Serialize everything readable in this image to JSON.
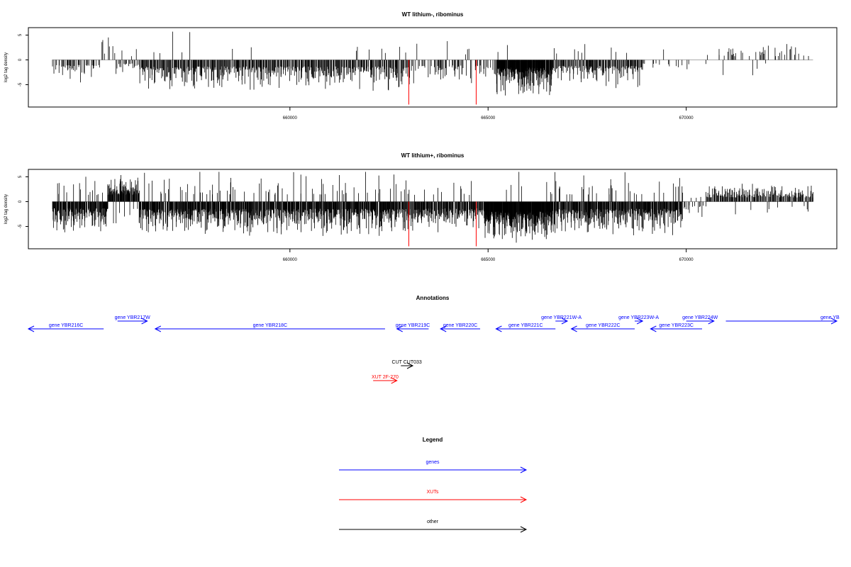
{
  "chart_data": [
    {
      "type": "bar",
      "title": "WT lithium-, ribominus",
      "ylabel": "log2 tag density",
      "xlim": [
        653400,
        673800
      ],
      "ylim": [
        -9.5,
        6.5
      ],
      "yticks": [
        -5,
        0,
        5
      ],
      "yticklabels": [
        "-5",
        "0",
        "5"
      ],
      "xticks": [
        660000,
        665000,
        670000
      ],
      "xticklabels": [
        "660000",
        "665000",
        "670000"
      ],
      "colors": {
        "bars": "#000000",
        "highlight": "#ff0000",
        "baseline": "#aaaaaa"
      },
      "highlights": [
        {
          "x": 663000,
          "y": -9.0
        },
        {
          "x": 664700,
          "y": -9.0
        }
      ],
      "profile": [
        {
          "start": 654000,
          "end": 655250,
          "density": 0.7,
          "pos_frac": 0.05,
          "amp": 4.0
        },
        {
          "start": 655250,
          "end": 655600,
          "density": 0.3,
          "pos_frac": 0.8,
          "amp": 4.5
        },
        {
          "start": 655600,
          "end": 656200,
          "density": 0.5,
          "pos_frac": 0.2,
          "amp": 3.0
        },
        {
          "start": 656200,
          "end": 663000,
          "density": 1.2,
          "pos_frac": 0.03,
          "amp": 5.5
        },
        {
          "start": 663000,
          "end": 665200,
          "density": 0.6,
          "pos_frac": 0.05,
          "amp": 4.5
        },
        {
          "start": 665200,
          "end": 666600,
          "density": 3.0,
          "pos_frac": 0.02,
          "amp": 6.5
        },
        {
          "start": 666600,
          "end": 668900,
          "density": 1.2,
          "pos_frac": 0.05,
          "amp": 5.0
        },
        {
          "start": 668900,
          "end": 670400,
          "density": 0.25,
          "pos_frac": 0.1,
          "amp": 2.5
        },
        {
          "start": 670400,
          "end": 673200,
          "density": 0.3,
          "pos_frac": 0.9,
          "amp": 3.0
        }
      ]
    },
    {
      "type": "bar",
      "title": "WT lithium+, ribominus",
      "ylabel": "log2 tag density",
      "xlim": [
        653400,
        673800
      ],
      "ylim": [
        -9.5,
        6.5
      ],
      "yticks": [
        -5,
        0,
        5
      ],
      "yticklabels": [
        "-5",
        "0",
        "5"
      ],
      "xticks": [
        660000,
        665000,
        670000
      ],
      "xticklabels": [
        "660000",
        "665000",
        "670000"
      ],
      "colors": {
        "bars": "#000000",
        "highlight": "#ff0000",
        "baseline": "#aaaaaa"
      },
      "highlights": [
        {
          "x": 663000,
          "y": -9.0
        },
        {
          "x": 664700,
          "y": -9.0
        }
      ],
      "profile": [
        {
          "start": 654000,
          "end": 655400,
          "density": 2.2,
          "pos_frac": 0.08,
          "amp": 5.5
        },
        {
          "start": 655400,
          "end": 656200,
          "density": 2.5,
          "pos_frac": 0.9,
          "amp": 5.5
        },
        {
          "start": 656200,
          "end": 663000,
          "density": 2.2,
          "pos_frac": 0.08,
          "amp": 6.0
        },
        {
          "start": 663000,
          "end": 664900,
          "density": 1.8,
          "pos_frac": 0.08,
          "amp": 5.5
        },
        {
          "start": 664900,
          "end": 666600,
          "density": 4.0,
          "pos_frac": 0.02,
          "amp": 7.5
        },
        {
          "start": 666600,
          "end": 669900,
          "density": 2.2,
          "pos_frac": 0.1,
          "amp": 6.0
        },
        {
          "start": 669900,
          "end": 670500,
          "density": 0.6,
          "pos_frac": 0.2,
          "amp": 3.0
        },
        {
          "start": 670500,
          "end": 673200,
          "density": 1.2,
          "pos_frac": 0.95,
          "amp": 3.5
        }
      ]
    }
  ],
  "annotations": {
    "title": "Annotations",
    "xlim": [
      653400,
      673800
    ],
    "features": [
      {
        "label": "gene YBR216C",
        "start": 653400,
        "end": 655300,
        "strand": "-",
        "type": "gene",
        "row": 1
      },
      {
        "label": "gene YBR217W",
        "start": 655650,
        "end": 656400,
        "strand": "+",
        "type": "gene",
        "row": 0
      },
      {
        "label": "gene YBR218C",
        "start": 656600,
        "end": 662400,
        "strand": "-",
        "type": "gene",
        "row": 1
      },
      {
        "label": "gene YBR219C",
        "start": 662700,
        "end": 663500,
        "strand": "-",
        "type": "gene",
        "row": 1
      },
      {
        "label": "gene YBR220C",
        "start": 663800,
        "end": 664800,
        "strand": "-",
        "type": "gene",
        "row": 1
      },
      {
        "label": "gene YBR221C",
        "start": 665200,
        "end": 666700,
        "strand": "-",
        "type": "gene",
        "row": 1
      },
      {
        "label": "gene YBR221W-A",
        "start": 666700,
        "end": 667000,
        "strand": "+",
        "type": "gene",
        "row": 0
      },
      {
        "label": "gene YBR222C",
        "start": 667100,
        "end": 668700,
        "strand": "-",
        "type": "gene",
        "row": 1
      },
      {
        "label": "gene YBR223W-A",
        "start": 668700,
        "end": 668900,
        "strand": "+",
        "type": "gene",
        "row": 0
      },
      {
        "label": "gene YBR223C",
        "start": 669100,
        "end": 670400,
        "strand": "-",
        "type": "gene",
        "row": 1
      },
      {
        "label": "gene YBR224W",
        "start": 670000,
        "end": 670700,
        "strand": "+",
        "type": "gene",
        "row": 0
      },
      {
        "label": "gene YB",
        "start": 671000,
        "end": 673800,
        "strand": "+",
        "type": "gene",
        "row": 0
      },
      {
        "label": "CUT CUT033",
        "start": 662800,
        "end": 663100,
        "strand": "+",
        "type": "other",
        "row": 2
      },
      {
        "label": "XUT 2F-270",
        "start": 662100,
        "end": 662700,
        "strand": "+",
        "type": "xut",
        "row": 3
      }
    ]
  },
  "legend": {
    "title": "Legend",
    "items": [
      {
        "label": "genes",
        "color": "#0000ff"
      },
      {
        "label": "XUTs",
        "color": "#ff0000"
      },
      {
        "label": "other",
        "color": "#000000"
      }
    ]
  }
}
